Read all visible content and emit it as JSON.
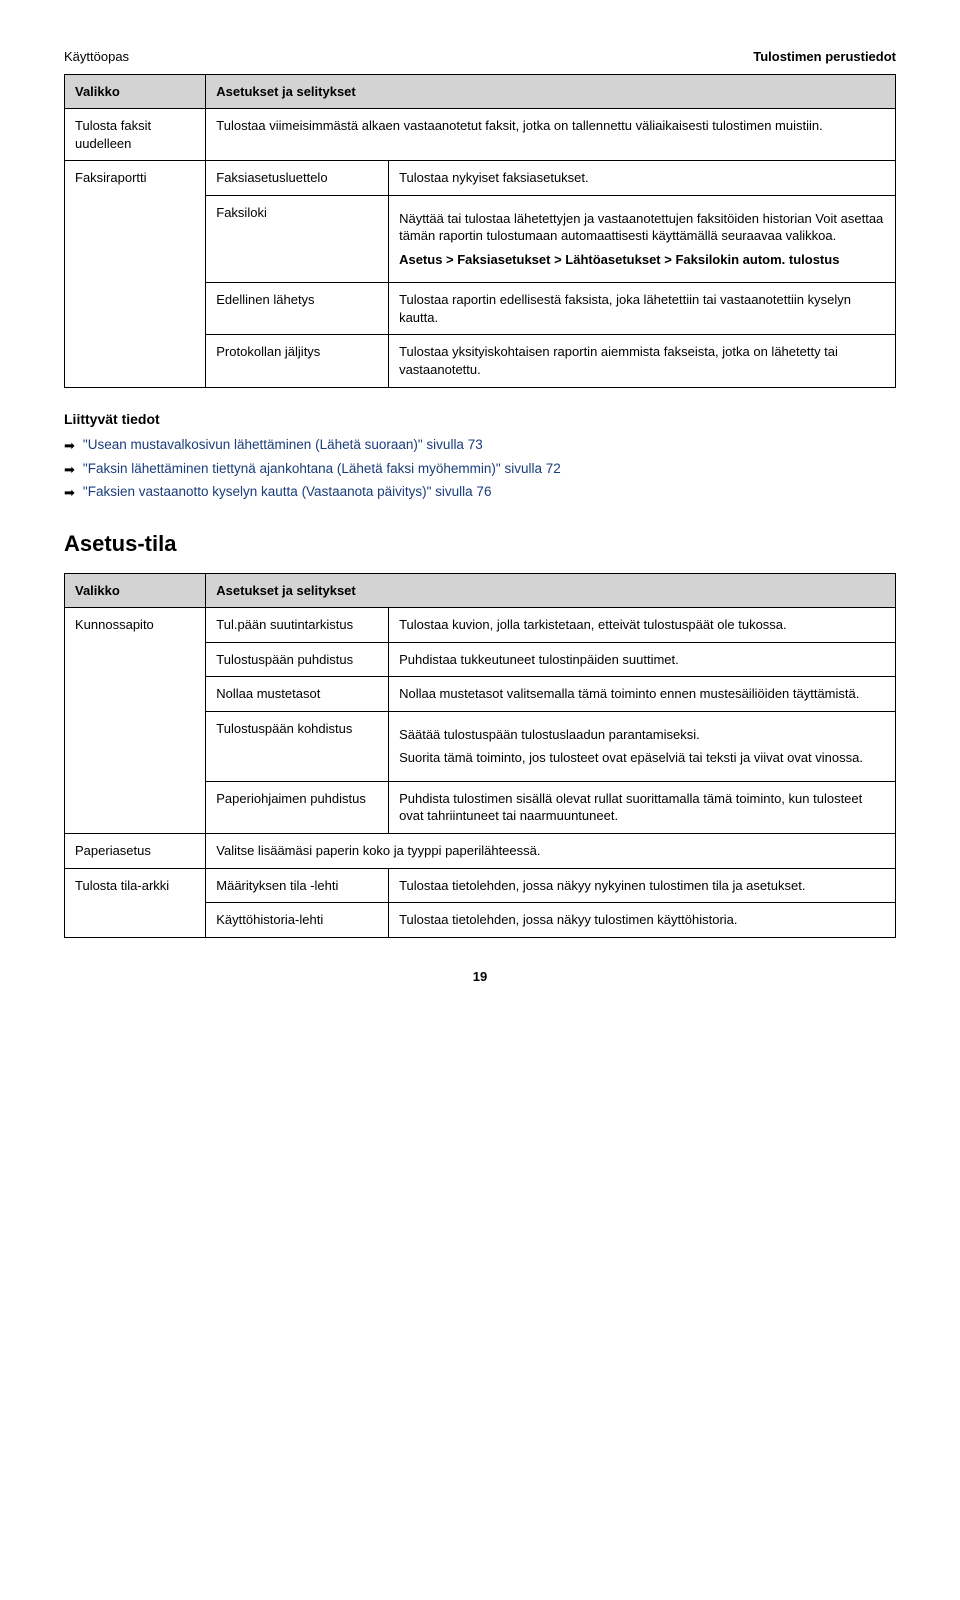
{
  "header": {
    "left": "Käyttöopas",
    "right": "Tulostimen perustiedot"
  },
  "table1": {
    "head": {
      "c1": "Valikko",
      "c2": "Asetukset ja selitykset"
    },
    "rows": {
      "r1": {
        "c1": "Tulosta faksit uudelleen",
        "c2": "Tulostaa viimeisimmästä alkaen vastaanotetut faksit, jotka on tallennettu väliaikaisesti tulostimen muistiin."
      },
      "r2": {
        "c1": "Faksiraportti",
        "c2": "Faksiasetusluettelo",
        "c3": "Tulostaa nykyiset faksiasetukset."
      },
      "r3": {
        "c2": "Faksiloki",
        "c3a": "Näyttää tai tulostaa lähetettyjen ja vastaanotettujen faksitöiden historian Voit asettaa tämän raportin tulostumaan automaattisesti käyttämällä seuraavaa valikkoa.",
        "c3b": "Asetus > Faksiasetukset > Lähtöasetukset > Faksilokin autom. tulostus"
      },
      "r4": {
        "c2": "Edellinen lähetys",
        "c3": "Tulostaa raportin edellisestä faksista, joka lähetettiin tai vastaanotettiin kyselyn kautta."
      },
      "r5": {
        "c2": "Protokollan jäljitys",
        "c3": "Tulostaa yksityiskohtaisen raportin aiemmista fakseista, jotka on lähetetty tai vastaanotettu."
      }
    }
  },
  "related": {
    "heading": "Liittyvät tiedot",
    "items": [
      "\"Usean mustavalkosivun lähettäminen (Lähetä suoraan)\" sivulla 73",
      "\"Faksin lähettäminen tiettynä ajankohtana (Lähetä faksi myöhemmin)\" sivulla 72",
      "\"Faksien vastaanotto kyselyn kautta (Vastaanota päivitys)\" sivulla 76"
    ]
  },
  "h2": "Asetus-tila",
  "table2": {
    "head": {
      "c1": "Valikko",
      "c2": "Asetukset ja selitykset"
    },
    "rows": {
      "r1": {
        "c1": "Kunnossapito",
        "c2": "Tul.pään suutintarkistus",
        "c3": "Tulostaa kuvion, jolla tarkistetaan, etteivät tulostuspäät ole tukossa."
      },
      "r2": {
        "c2": "Tulostuspään puhdistus",
        "c3": "Puhdistaa tukkeutuneet tulostinpäiden suuttimet."
      },
      "r3": {
        "c2": "Nollaa mustetasot",
        "c3": "Nollaa mustetasot valitsemalla tämä toiminto ennen mustesäiliöiden täyttämistä."
      },
      "r4": {
        "c2": "Tulostuspään kohdistus",
        "c3a": "Säätää tulostuspään tulostuslaadun parantamiseksi.",
        "c3b": "Suorita tämä toiminto, jos tulosteet ovat epäselviä tai teksti ja viivat ovat vinossa."
      },
      "r5": {
        "c2": "Paperiohjaimen puhdistus",
        "c3": "Puhdista tulostimen sisällä olevat rullat suorittamalla tämä toiminto, kun tulosteet ovat tahriintuneet tai naarmuuntuneet."
      },
      "r6": {
        "c1": "Paperiasetus",
        "c2": "Valitse lisäämäsi paperin koko ja tyyppi paperilähteessä."
      },
      "r7": {
        "c1": "Tulosta tila-arkki",
        "c2": "Määrityksen tila -lehti",
        "c3": "Tulostaa tietolehden, jossa näkyy nykyinen tulostimen tila ja asetukset."
      },
      "r8": {
        "c2": "Käyttöhistoria-lehti",
        "c3": "Tulostaa tietolehden, jossa näkyy tulostimen käyttöhistoria."
      }
    }
  },
  "pageNumber": "19"
}
